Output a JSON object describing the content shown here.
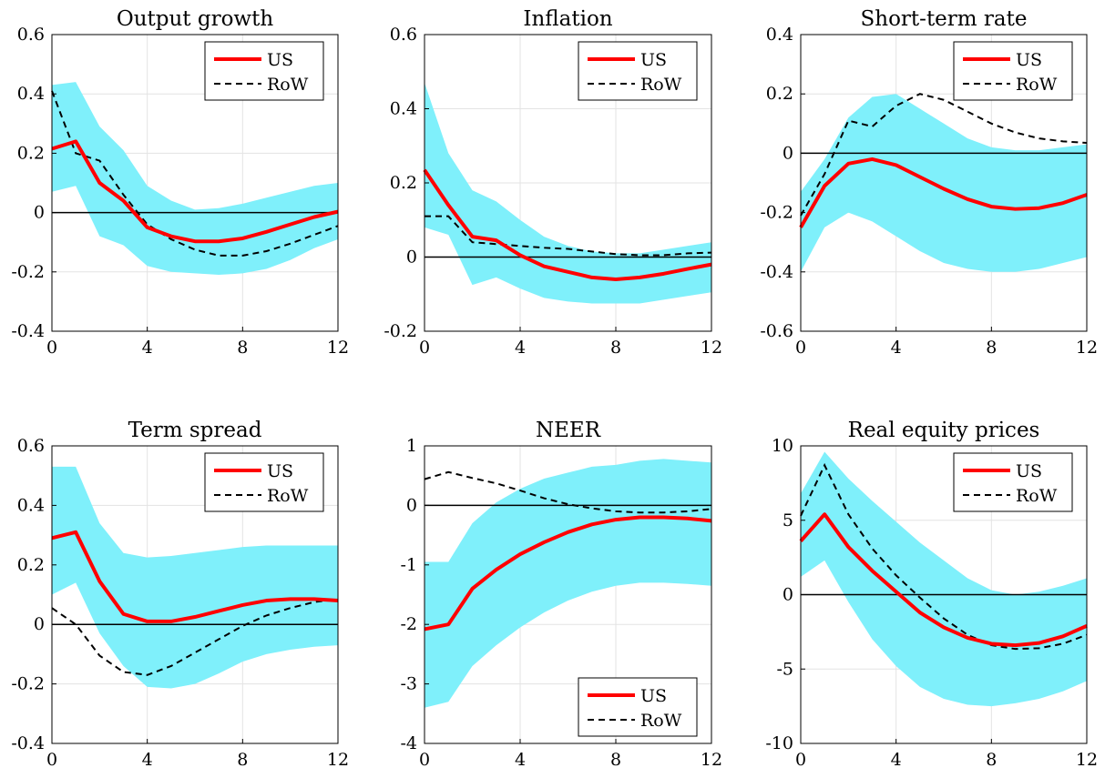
{
  "chart_data": [
    {
      "type": "line",
      "title": "Output growth",
      "x": [
        0,
        1,
        2,
        3,
        4,
        5,
        6,
        7,
        8,
        9,
        10,
        11,
        12
      ],
      "xlim": [
        0,
        12
      ],
      "xticks": [
        0,
        4,
        8,
        12
      ],
      "ylim": [
        -0.4,
        0.6
      ],
      "yticks": [
        -0.4,
        -0.2,
        0,
        0.2,
        0.4,
        0.6
      ],
      "ytick_labels": [
        "-0.4",
        "-0.2",
        "0",
        "0.2",
        "0.4",
        "0.6"
      ],
      "grid": true,
      "legend_position": "top-right",
      "band": {
        "lower": [
          0.07,
          0.09,
          -0.08,
          -0.11,
          -0.18,
          -0.2,
          -0.205,
          -0.21,
          -0.205,
          -0.19,
          -0.16,
          -0.12,
          -0.09
        ],
        "upper": [
          0.43,
          0.44,
          0.29,
          0.21,
          0.09,
          0.04,
          0.01,
          0.015,
          0.03,
          0.05,
          0.07,
          0.09,
          0.1
        ]
      },
      "series": [
        {
          "name": "US",
          "values": [
            0.215,
            0.24,
            0.1,
            0.04,
            -0.05,
            -0.08,
            -0.097,
            -0.097,
            -0.087,
            -0.065,
            -0.04,
            -0.015,
            0.003
          ]
        },
        {
          "name": "RoW",
          "values": [
            0.41,
            0.2,
            0.175,
            0.06,
            -0.04,
            -0.09,
            -0.125,
            -0.145,
            -0.145,
            -0.13,
            -0.105,
            -0.075,
            -0.045
          ]
        }
      ]
    },
    {
      "type": "line",
      "title": "Inflation",
      "x": [
        0,
        1,
        2,
        3,
        4,
        5,
        6,
        7,
        8,
        9,
        10,
        11,
        12
      ],
      "xlim": [
        0,
        12
      ],
      "xticks": [
        0,
        4,
        8,
        12
      ],
      "ylim": [
        -0.2,
        0.6
      ],
      "yticks": [
        -0.2,
        0,
        0.2,
        0.4,
        0.6
      ],
      "ytick_labels": [
        "-0.2",
        "0",
        "0.2",
        "0.4",
        "0.6"
      ],
      "grid": true,
      "legend_position": "top-right",
      "band": {
        "lower": [
          0.08,
          0.06,
          -0.075,
          -0.055,
          -0.085,
          -0.11,
          -0.12,
          -0.125,
          -0.125,
          -0.125,
          -0.115,
          -0.105,
          -0.095
        ],
        "upper": [
          0.47,
          0.28,
          0.18,
          0.15,
          0.1,
          0.055,
          0.03,
          0.015,
          0.01,
          0.01,
          0.02,
          0.03,
          0.04
        ]
      },
      "series": [
        {
          "name": "US",
          "values": [
            0.235,
            0.14,
            0.055,
            0.045,
            0.005,
            -0.025,
            -0.04,
            -0.055,
            -0.06,
            -0.055,
            -0.045,
            -0.032,
            -0.02
          ]
        },
        {
          "name": "RoW",
          "values": [
            0.11,
            0.11,
            0.04,
            0.035,
            0.03,
            0.025,
            0.022,
            0.015,
            0.008,
            0.005,
            0.005,
            0.01,
            0.012
          ]
        }
      ]
    },
    {
      "type": "line",
      "title": "Short-term rate",
      "x": [
        0,
        1,
        2,
        3,
        4,
        5,
        6,
        7,
        8,
        9,
        10,
        11,
        12
      ],
      "xlim": [
        0,
        12
      ],
      "xticks": [
        0,
        4,
        8,
        12
      ],
      "ylim": [
        -0.6,
        0.4
      ],
      "yticks": [
        -0.6,
        -0.4,
        -0.2,
        0,
        0.2,
        0.4
      ],
      "ytick_labels": [
        "-0.6",
        "-0.4",
        "-0.2",
        "0",
        "0.2",
        "0.4"
      ],
      "grid": true,
      "legend_position": "top-right",
      "band": {
        "lower": [
          -0.4,
          -0.25,
          -0.2,
          -0.23,
          -0.28,
          -0.33,
          -0.37,
          -0.39,
          -0.4,
          -0.4,
          -0.39,
          -0.37,
          -0.35
        ],
        "upper": [
          -0.13,
          -0.02,
          0.12,
          0.19,
          0.2,
          0.15,
          0.1,
          0.05,
          0.02,
          0.01,
          0.01,
          0.02,
          0.03
        ]
      },
      "series": [
        {
          "name": "US",
          "values": [
            -0.25,
            -0.11,
            -0.035,
            -0.02,
            -0.04,
            -0.08,
            -0.12,
            -0.155,
            -0.18,
            -0.188,
            -0.185,
            -0.168,
            -0.14
          ]
        },
        {
          "name": "RoW",
          "values": [
            -0.21,
            -0.07,
            0.11,
            0.09,
            0.16,
            0.2,
            0.18,
            0.14,
            0.1,
            0.07,
            0.05,
            0.04,
            0.035
          ]
        }
      ]
    },
    {
      "type": "line",
      "title": "Term spread",
      "x": [
        0,
        1,
        2,
        3,
        4,
        5,
        6,
        7,
        8,
        9,
        10,
        11,
        12
      ],
      "xlim": [
        0,
        12
      ],
      "xticks": [
        0,
        4,
        8,
        12
      ],
      "ylim": [
        -0.4,
        0.6
      ],
      "yticks": [
        -0.4,
        -0.2,
        0,
        0.2,
        0.4,
        0.6
      ],
      "ytick_labels": [
        "-0.4",
        "-0.2",
        "0",
        "0.2",
        "0.4",
        "0.6"
      ],
      "grid": true,
      "legend_position": "top-right",
      "band": {
        "lower": [
          0.1,
          0.14,
          -0.03,
          -0.14,
          -0.21,
          -0.215,
          -0.2,
          -0.165,
          -0.125,
          -0.1,
          -0.085,
          -0.075,
          -0.07
        ],
        "upper": [
          0.53,
          0.53,
          0.34,
          0.24,
          0.225,
          0.23,
          0.24,
          0.25,
          0.26,
          0.265,
          0.265,
          0.265,
          0.265
        ]
      },
      "series": [
        {
          "name": "US",
          "values": [
            0.29,
            0.31,
            0.145,
            0.035,
            0.01,
            0.01,
            0.025,
            0.045,
            0.065,
            0.08,
            0.085,
            0.085,
            0.08
          ]
        },
        {
          "name": "RoW",
          "values": [
            0.055,
            0.0,
            -0.105,
            -0.16,
            -0.17,
            -0.14,
            -0.095,
            -0.05,
            -0.005,
            0.03,
            0.055,
            0.075,
            0.085
          ]
        }
      ]
    },
    {
      "type": "line",
      "title": "NEER",
      "x": [
        0,
        1,
        2,
        3,
        4,
        5,
        6,
        7,
        8,
        9,
        10,
        11,
        12
      ],
      "xlim": [
        0,
        12
      ],
      "xticks": [
        0,
        4,
        8,
        12
      ],
      "ylim": [
        -4,
        1
      ],
      "yticks": [
        -4,
        -3,
        -2,
        -1,
        0,
        1
      ],
      "ytick_labels": [
        "-4",
        "-3",
        "-2",
        "-1",
        "0",
        "1"
      ],
      "grid": true,
      "legend_position": "bottom-right",
      "band": {
        "lower": [
          -3.4,
          -3.3,
          -2.7,
          -2.35,
          -2.05,
          -1.8,
          -1.6,
          -1.45,
          -1.35,
          -1.3,
          -1.3,
          -1.32,
          -1.35
        ],
        "upper": [
          -0.95,
          -0.95,
          -0.3,
          0.05,
          0.28,
          0.45,
          0.55,
          0.65,
          0.68,
          0.75,
          0.78,
          0.75,
          0.72
        ]
      },
      "series": [
        {
          "name": "US",
          "values": [
            -2.08,
            -2.0,
            -1.4,
            -1.08,
            -0.82,
            -0.62,
            -0.45,
            -0.32,
            -0.24,
            -0.2,
            -0.2,
            -0.22,
            -0.26
          ]
        },
        {
          "name": "RoW",
          "values": [
            0.44,
            0.56,
            0.46,
            0.37,
            0.25,
            0.12,
            0.02,
            -0.05,
            -0.1,
            -0.12,
            -0.12,
            -0.1,
            -0.06
          ]
        }
      ]
    },
    {
      "type": "line",
      "title": "Real equity prices",
      "x": [
        0,
        1,
        2,
        3,
        4,
        5,
        6,
        7,
        8,
        9,
        10,
        11,
        12
      ],
      "xlim": [
        0,
        12
      ],
      "xticks": [
        0,
        4,
        8,
        12
      ],
      "ylim": [
        -10,
        10
      ],
      "yticks": [
        -10,
        -5,
        0,
        5,
        10
      ],
      "ytick_labels": [
        "-10",
        "-5",
        "0",
        "5",
        "10"
      ],
      "grid": true,
      "legend_position": "top-right",
      "band": {
        "lower": [
          1.2,
          2.3,
          -0.5,
          -3.0,
          -4.8,
          -6.2,
          -7.0,
          -7.4,
          -7.5,
          -7.3,
          -7.0,
          -6.5,
          -5.8
        ],
        "upper": [
          6.8,
          9.6,
          7.8,
          6.3,
          4.9,
          3.5,
          2.3,
          1.1,
          0.3,
          0.0,
          0.2,
          0.6,
          1.1
        ]
      },
      "series": [
        {
          "name": "US",
          "values": [
            3.6,
            5.4,
            3.2,
            1.6,
            0.2,
            -1.2,
            -2.2,
            -2.9,
            -3.3,
            -3.4,
            -3.25,
            -2.8,
            -2.1
          ]
        },
        {
          "name": "RoW",
          "values": [
            5.3,
            8.7,
            5.4,
            3.1,
            1.3,
            -0.2,
            -1.6,
            -2.7,
            -3.4,
            -3.65,
            -3.6,
            -3.3,
            -2.7
          ]
        }
      ]
    }
  ],
  "colors": {
    "us": "#ff0000",
    "row": "#000000",
    "band": "#7ff0fb"
  }
}
